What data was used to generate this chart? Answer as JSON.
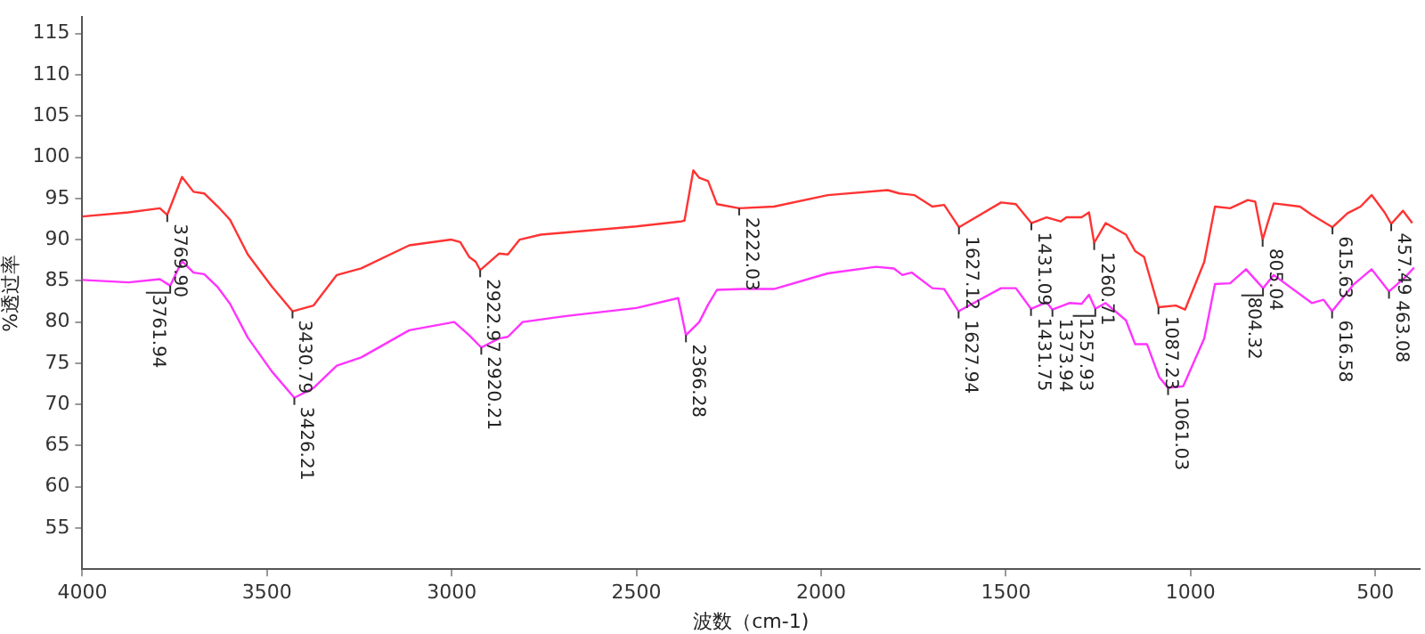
{
  "chart_data": {
    "type": "line",
    "xlabel": "波数（cm-1)",
    "ylabel": "%透过率",
    "xlim": [
      4000,
      380
    ],
    "xticks": [
      4000,
      3500,
      3000,
      2500,
      2000,
      1500,
      1000,
      500
    ],
    "ylim": [
      50,
      117
    ],
    "yticks": [
      55,
      60,
      65,
      70,
      75,
      80,
      85,
      90,
      95,
      100,
      105,
      110,
      115
    ],
    "grid": false,
    "legend": false,
    "marker": "none",
    "line_style": "solid",
    "series": [
      {
        "color": "#ff3333",
        "x": [
          4000,
          3875,
          3790,
          3770,
          3730,
          3699,
          3670,
          3633,
          3600,
          3552,
          3487,
          3431,
          3374,
          3311,
          3245,
          3115,
          3001,
          2977,
          2953,
          2935,
          2923,
          2872,
          2848,
          2816,
          2759,
          2500,
          2379,
          2370,
          2346,
          2330,
          2306,
          2282,
          2222,
          2128,
          1982,
          1820,
          1788,
          1748,
          1699,
          1667,
          1627,
          1513,
          1473,
          1431,
          1390,
          1352,
          1336,
          1295,
          1275,
          1261,
          1230,
          1175,
          1150,
          1126,
          1087,
          1040,
          1015,
          963,
          934,
          893,
          845,
          825,
          805,
          775,
          704,
          672,
          616,
          575,
          540,
          510,
          475,
          457,
          425,
          400
        ],
        "values": [
          92.8,
          93.3,
          93.8,
          93.0,
          97.6,
          95.8,
          95.6,
          94.0,
          92.4,
          88.2,
          84.3,
          81.3,
          82.0,
          85.7,
          86.5,
          89.3,
          90.0,
          89.7,
          87.9,
          87.3,
          86.3,
          88.3,
          88.2,
          90.0,
          90.6,
          91.6,
          92.2,
          92.3,
          98.4,
          97.5,
          97.1,
          94.3,
          93.8,
          94.0,
          95.4,
          96.0,
          95.6,
          95.4,
          94.0,
          94.2,
          91.5,
          94.5,
          94.3,
          92.0,
          92.7,
          92.2,
          92.7,
          92.7,
          93.3,
          89.6,
          92.0,
          90.6,
          88.6,
          87.9,
          81.8,
          82.0,
          81.5,
          87.3,
          94.0,
          93.8,
          94.8,
          94.6,
          90.0,
          94.4,
          94.0,
          93.0,
          91.5,
          93.2,
          94.0,
          95.4,
          93.3,
          91.9,
          93.5,
          92.0
        ]
      },
      {
        "color": "#ff33ff",
        "x": [
          4000,
          3875,
          3790,
          3762,
          3730,
          3699,
          3670,
          3633,
          3600,
          3552,
          3487,
          3426,
          3374,
          3311,
          3245,
          3115,
          2993,
          2953,
          2920,
          2872,
          2848,
          2808,
          2695,
          2500,
          2387,
          2366,
          2330,
          2306,
          2282,
          2209,
          2128,
          1982,
          1852,
          1803,
          1780,
          1755,
          1699,
          1667,
          1628,
          1513,
          1473,
          1432,
          1390,
          1374,
          1328,
          1295,
          1275,
          1258,
          1230,
          1175,
          1150,
          1118,
          1085,
          1061,
          1020,
          963,
          934,
          893,
          850,
          804,
          775,
          672,
          640,
          617,
          560,
          510,
          463,
          420,
          395
        ],
        "values": [
          85.1,
          84.8,
          85.2,
          84.4,
          87.4,
          86.0,
          85.8,
          84.2,
          82.2,
          78.1,
          74.0,
          70.8,
          72.0,
          74.7,
          75.7,
          79.0,
          80.0,
          78.4,
          76.9,
          78.0,
          78.2,
          80.0,
          80.7,
          81.7,
          82.9,
          78.4,
          80.0,
          82.1,
          83.9,
          84.0,
          84.0,
          85.9,
          86.7,
          86.5,
          85.7,
          86.0,
          84.1,
          84.0,
          81.3,
          84.1,
          84.1,
          81.6,
          82.4,
          81.5,
          82.3,
          82.2,
          83.3,
          81.6,
          82.3,
          80.2,
          77.3,
          77.3,
          73.3,
          72.0,
          72.2,
          78.0,
          84.6,
          84.7,
          86.4,
          84.1,
          85.7,
          82.3,
          82.7,
          81.3,
          84.5,
          86.4,
          83.7,
          85.4,
          86.6
        ]
      }
    ],
    "annotations": [
      {
        "text": "3769.90",
        "x": 3770,
        "y": 93.0
      },
      {
        "text": "3430.79",
        "x": 3431,
        "y": 81.3
      },
      {
        "text": "2922.97",
        "x": 2923,
        "y": 86.3
      },
      {
        "text": "2222.03",
        "x": 2222,
        "y": 93.8
      },
      {
        "text": "1627.12",
        "x": 1627,
        "y": 91.5
      },
      {
        "text": "1431.09",
        "x": 1431,
        "y": 92.0
      },
      {
        "text": "1260.71",
        "x": 1261,
        "y": 89.6
      },
      {
        "text": "1087.23",
        "x": 1087,
        "y": 81.8
      },
      {
        "text": "805.04",
        "x": 805,
        "y": 90.0
      },
      {
        "text": "615.63",
        "x": 616,
        "y": 91.5
      },
      {
        "text": "457.49",
        "x": 457,
        "y": 91.9
      },
      {
        "text": "3761.94",
        "x": 3762,
        "y": 84.4
      },
      {
        "text": "3426.21",
        "x": 3426,
        "y": 70.8
      },
      {
        "text": "2920.21",
        "x": 2920,
        "y": 76.9
      },
      {
        "text": "2366.28",
        "x": 2366,
        "y": 78.4
      },
      {
        "text": "1627.94",
        "x": 1628,
        "y": 81.3
      },
      {
        "text": "1431.75",
        "x": 1432,
        "y": 81.6
      },
      {
        "text": "1373.94",
        "x": 1374,
        "y": 81.5
      },
      {
        "text": "1257.93",
        "x": 1258,
        "y": 81.6
      },
      {
        "text": "1061.03",
        "x": 1061,
        "y": 72.0
      },
      {
        "text": "804.32",
        "x": 804,
        "y": 84.1
      },
      {
        "text": "616.58",
        "x": 617,
        "y": 81.3
      },
      {
        "text": "463.08",
        "x": 463,
        "y": 83.7
      }
    ]
  }
}
